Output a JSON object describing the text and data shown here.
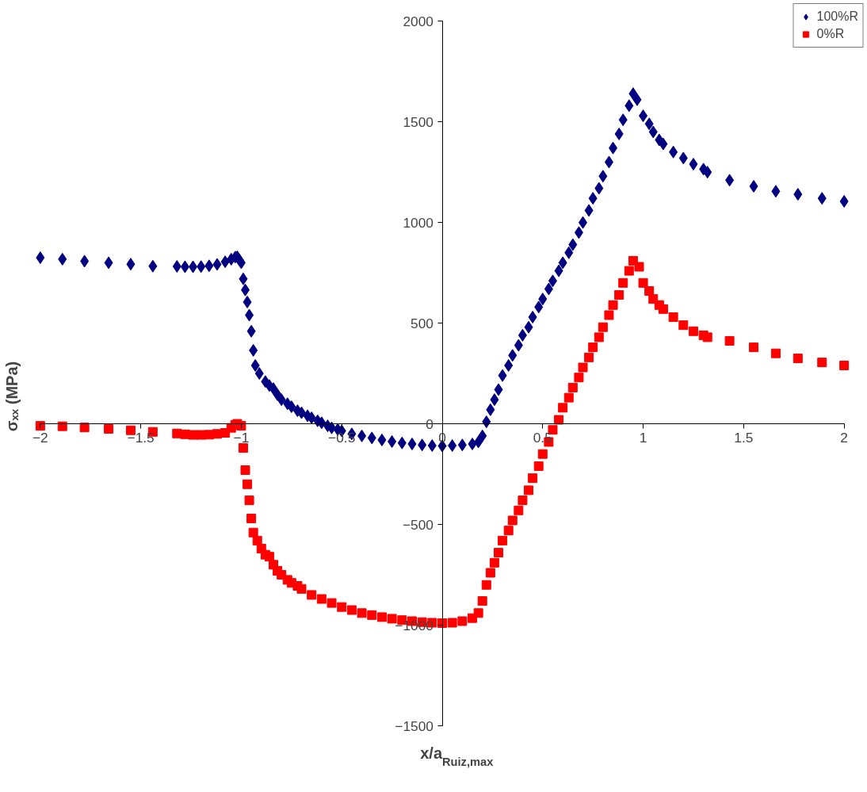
{
  "chart_data": {
    "type": "scatter",
    "xlabel": "x/a$_{Ruiz,max}$",
    "ylabel": "σₓₓ (MPa)",
    "xlim": [
      -2,
      2
    ],
    "ylim": [
      -1500,
      2000
    ],
    "xticks": [
      -2,
      -1.5,
      -1,
      -0.5,
      0,
      0.5,
      1,
      1.5,
      2
    ],
    "yticks": [
      -1500,
      -1000,
      -500,
      0,
      500,
      1000,
      1500,
      2000
    ],
    "grid": false,
    "legend": "top right",
    "series": [
      {
        "name": "100%R",
        "color": "#000080",
        "marker": "diamond",
        "x": [
          -2,
          -1.89,
          -1.78,
          -1.66,
          -1.55,
          -1.44,
          -1.32,
          -1.28,
          -1.24,
          -1.2,
          -1.16,
          -1.12,
          -1.08,
          -1.05,
          -1.03,
          -1.02,
          -1.01,
          -1.0,
          -0.99,
          -0.98,
          -0.97,
          -0.96,
          -0.95,
          -0.94,
          -0.93,
          -0.91,
          -0.88,
          -0.86,
          -0.84,
          -0.82,
          -0.8,
          -0.77,
          -0.75,
          -0.72,
          -0.7,
          -0.67,
          -0.65,
          -0.62,
          -0.6,
          -0.57,
          -0.55,
          -0.52,
          -0.5,
          -0.45,
          -0.4,
          -0.35,
          -0.3,
          -0.25,
          -0.2,
          -0.15,
          -0.1,
          -0.05,
          0,
          0.05,
          0.1,
          0.15,
          0.18,
          0.2,
          0.22,
          0.24,
          0.26,
          0.28,
          0.3,
          0.33,
          0.35,
          0.38,
          0.4,
          0.43,
          0.45,
          0.48,
          0.5,
          0.53,
          0.55,
          0.58,
          0.6,
          0.63,
          0.65,
          0.68,
          0.7,
          0.73,
          0.75,
          0.78,
          0.8,
          0.83,
          0.85,
          0.88,
          0.9,
          0.93,
          0.95,
          0.97,
          1.0,
          1.03,
          1.05,
          1.08,
          1.1,
          1.15,
          1.2,
          1.25,
          1.3,
          1.32,
          1.43,
          1.55,
          1.66,
          1.77,
          1.89,
          2.0
        ],
        "values": [
          825,
          818,
          808,
          800,
          793,
          783,
          782,
          780,
          780,
          781,
          785,
          792,
          805,
          818,
          828,
          830,
          815,
          800,
          720,
          665,
          605,
          540,
          460,
          365,
          290,
          250,
          210,
          190,
          175,
          145,
          120,
          100,
          85,
          65,
          55,
          40,
          30,
          15,
          5,
          -10,
          -20,
          -28,
          -35,
          -50,
          -60,
          -70,
          -80,
          -88,
          -95,
          -100,
          -105,
          -108,
          -110,
          -108,
          -105,
          -100,
          -90,
          -60,
          10,
          70,
          120,
          170,
          240,
          290,
          340,
          390,
          440,
          480,
          530,
          580,
          620,
          670,
          710,
          760,
          800,
          850,
          890,
          950,
          1000,
          1060,
          1120,
          1170,
          1230,
          1300,
          1370,
          1440,
          1510,
          1580,
          1640,
          1610,
          1530,
          1490,
          1450,
          1410,
          1390,
          1350,
          1320,
          1290,
          1265,
          1250,
          1210,
          1180,
          1155,
          1140,
          1120,
          1105
        ]
      },
      {
        "name": "0%R",
        "color": "#ff0000",
        "marker": "square",
        "x": [
          -2,
          -1.89,
          -1.78,
          -1.66,
          -1.55,
          -1.44,
          -1.32,
          -1.28,
          -1.24,
          -1.2,
          -1.16,
          -1.12,
          -1.08,
          -1.05,
          -1.03,
          -1.02,
          -1.0,
          -0.99,
          -0.98,
          -0.97,
          -0.96,
          -0.95,
          -0.94,
          -0.92,
          -0.9,
          -0.88,
          -0.86,
          -0.84,
          -0.82,
          -0.8,
          -0.77,
          -0.75,
          -0.72,
          -0.7,
          -0.65,
          -0.6,
          -0.55,
          -0.5,
          -0.45,
          -0.4,
          -0.35,
          -0.3,
          -0.25,
          -0.2,
          -0.15,
          -0.1,
          -0.05,
          0,
          0.05,
          0.1,
          0.15,
          0.18,
          0.2,
          0.22,
          0.24,
          0.26,
          0.28,
          0.3,
          0.33,
          0.35,
          0.38,
          0.4,
          0.43,
          0.45,
          0.48,
          0.5,
          0.53,
          0.55,
          0.58,
          0.6,
          0.63,
          0.65,
          0.68,
          0.7,
          0.73,
          0.75,
          0.78,
          0.8,
          0.83,
          0.85,
          0.88,
          0.9,
          0.93,
          0.95,
          0.98,
          1.0,
          1.03,
          1.05,
          1.08,
          1.1,
          1.15,
          1.2,
          1.25,
          1.3,
          1.32,
          1.43,
          1.55,
          1.66,
          1.77,
          1.89,
          2.0
        ],
        "values": [
          -10,
          -12,
          -18,
          -25,
          -32,
          -40,
          -48,
          -52,
          -55,
          -55,
          -54,
          -50,
          -45,
          -20,
          -5,
          0,
          -10,
          -120,
          -230,
          -300,
          -380,
          -470,
          -540,
          -580,
          -620,
          -650,
          -660,
          -700,
          -730,
          -750,
          -775,
          -790,
          -805,
          -820,
          -850,
          -870,
          -890,
          -910,
          -925,
          -940,
          -950,
          -960,
          -968,
          -975,
          -980,
          -985,
          -988,
          -990,
          -988,
          -980,
          -965,
          -940,
          -880,
          -800,
          -740,
          -690,
          -640,
          -580,
          -530,
          -480,
          -430,
          -380,
          -330,
          -270,
          -210,
          -150,
          -90,
          -30,
          20,
          80,
          130,
          180,
          230,
          280,
          330,
          380,
          430,
          480,
          540,
          590,
          640,
          700,
          760,
          810,
          780,
          700,
          660,
          620,
          590,
          570,
          530,
          490,
          460,
          440,
          430,
          412,
          380,
          350,
          325,
          305,
          290
        ]
      }
    ]
  }
}
